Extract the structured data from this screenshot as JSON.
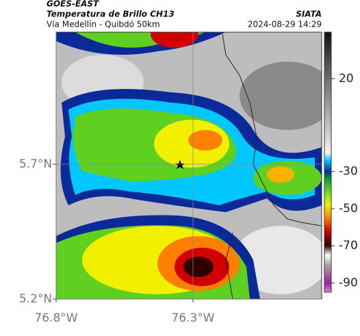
{
  "header": {
    "title": "GOES-EAST",
    "subtitle": "Temperatura de Brillo CH13",
    "region": "Vía Medellín - Quibdó 50km",
    "source": "SIATA",
    "datetime": "2024-08-29 14:29"
  },
  "map": {
    "xlim": [
      -76.8,
      -75.83
    ],
    "ylim": [
      5.2,
      6.19
    ],
    "xticks": [
      {
        "value": -76.8,
        "label": "76.8°W"
      },
      {
        "value": -76.3,
        "label": "76.3°W"
      }
    ],
    "yticks": [
      {
        "value": 5.7,
        "label": "5.7°N"
      },
      {
        "value": 5.2,
        "label": "5.2°N"
      }
    ],
    "grid": true
  },
  "colorbar": {
    "clim": [
      -95,
      45
    ],
    "ticks": [
      20,
      -30,
      -50,
      -70,
      -90
    ],
    "stops": [
      {
        "value": 45,
        "color": "#111111"
      },
      {
        "value": 20,
        "color": "#6e6e6e"
      },
      {
        "value": -20,
        "color": "#f2f2f2"
      },
      {
        "value": -24,
        "color": "#00c8ff"
      },
      {
        "value": -30,
        "color": "#0a2a9a"
      },
      {
        "value": -34,
        "color": "#00a030"
      },
      {
        "value": -42,
        "color": "#80e020"
      },
      {
        "value": -48,
        "color": "#f0f000"
      },
      {
        "value": -55,
        "color": "#ff8000"
      },
      {
        "value": -62,
        "color": "#d00000"
      },
      {
        "value": -70,
        "color": "#300000"
      },
      {
        "value": -75,
        "color": "#ffffff"
      },
      {
        "value": -80,
        "color": "#aaaaaa"
      },
      {
        "value": -90,
        "color": "#a020a0"
      },
      {
        "value": -95,
        "color": "#e080e0"
      }
    ]
  }
}
